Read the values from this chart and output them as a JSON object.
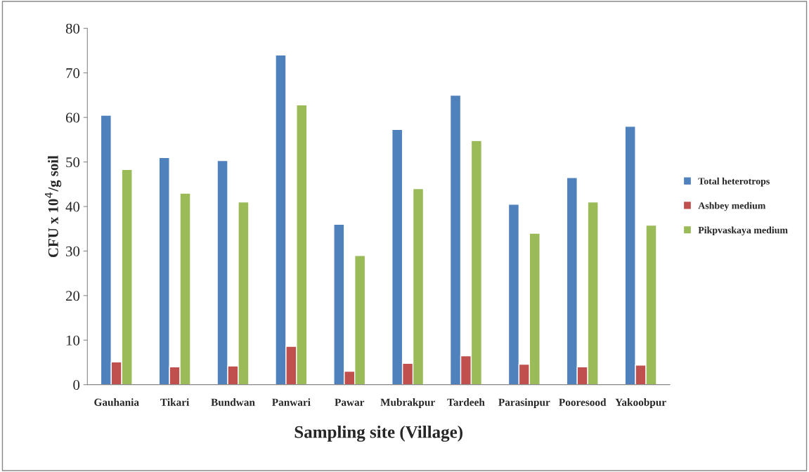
{
  "chart_data": {
    "type": "bar",
    "xlabel": "Sampling site (Village)",
    "ylabel": "CFU x 10$^{4}$/g soil",
    "categories": [
      "Gauhania",
      "Tikari",
      "Bundwan",
      "Panwari",
      "Pawar",
      "Mubrakpur",
      "Tardeeh",
      "Parasinpur",
      "Pooresood",
      "Yakoobpur"
    ],
    "series": [
      {
        "name": "Total heterotrops",
        "color": "#4f81bd",
        "values": [
          60.5,
          51,
          50.3,
          74,
          36,
          57.3,
          65,
          40.5,
          46.5,
          58
        ]
      },
      {
        "name": "Ashbey medium",
        "color": "#c0504d",
        "values": [
          5.1,
          4,
          4.2,
          8.6,
          3,
          4.8,
          6.5,
          4.6,
          4,
          4.4
        ]
      },
      {
        "name": "Pikpvaskaya medium",
        "color": "#9bbb59",
        "values": [
          48.3,
          43,
          41,
          62.8,
          29,
          44,
          54.8,
          34,
          41,
          35.8
        ]
      }
    ],
    "ylim": [
      0,
      80
    ],
    "yticks": [
      0,
      10,
      20,
      30,
      40,
      50,
      60,
      70,
      80
    ],
    "grid": false,
    "legend": "right"
  }
}
